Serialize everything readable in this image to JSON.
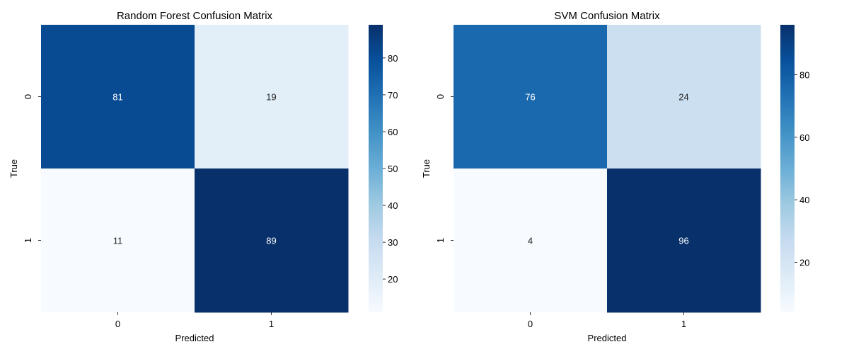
{
  "chart_data": [
    {
      "type": "heatmap",
      "title": "Random Forest Confusion Matrix",
      "xlabel": "Predicted",
      "ylabel": "True",
      "x_categories": [
        "0",
        "1"
      ],
      "y_categories": [
        "0",
        "1"
      ],
      "values": [
        [
          81,
          19
        ],
        [
          11,
          89
        ]
      ],
      "colormap": "Blues",
      "colorbar": {
        "range": [
          11,
          89
        ],
        "ticks": [
          20,
          30,
          40,
          50,
          60,
          70,
          80
        ]
      }
    },
    {
      "type": "heatmap",
      "title": "SVM Confusion Matrix",
      "xlabel": "Predicted",
      "ylabel": "True",
      "x_categories": [
        "0",
        "1"
      ],
      "y_categories": [
        "0",
        "1"
      ],
      "values": [
        [
          76,
          24
        ],
        [
          4,
          96
        ]
      ],
      "colormap": "Blues",
      "colorbar": {
        "range": [
          4,
          96
        ],
        "ticks": [
          20,
          40,
          60,
          80
        ]
      }
    }
  ]
}
